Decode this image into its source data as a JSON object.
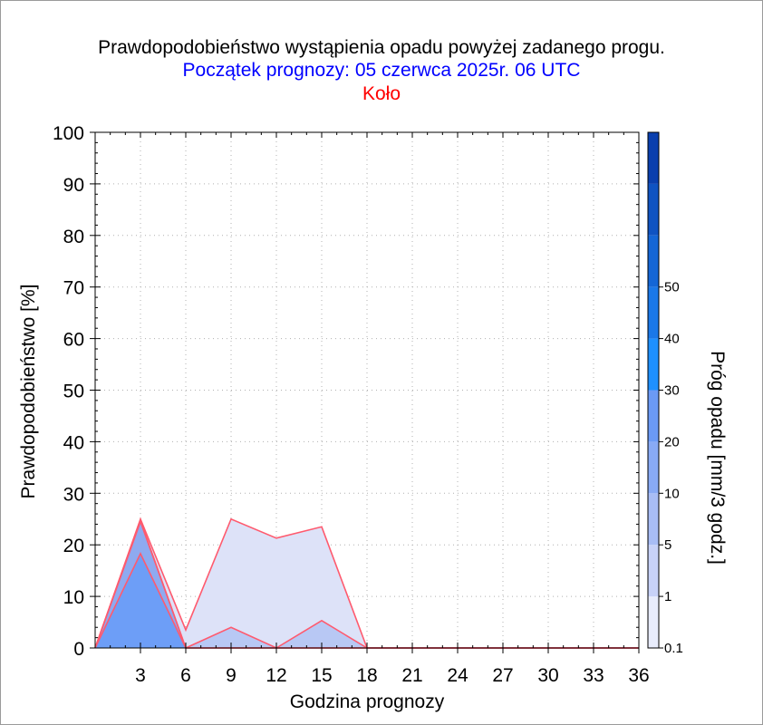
{
  "title": "Prawdopodobieństwo wystąpienia opadu powyżej zadanego progu.",
  "subtitle": "Początek prognozy: 05 czerwca 2025r. 06 UTC",
  "location": "Koło",
  "colors": {
    "title": "#000000",
    "subtitle": "#0000ff",
    "location": "#ff0000",
    "outline": "#ff5a6e",
    "grid": "#b0b0b0"
  },
  "chart_data": {
    "type": "area",
    "xlabel": "Godzina prognozy",
    "ylabel": "Prawdopodobieństwo [%]",
    "colorbar_label": "Próg opadu [mm/3 godz.]",
    "xlim": [
      0,
      36
    ],
    "ylim": [
      0,
      100
    ],
    "x_ticks": [
      "3",
      "6",
      "9",
      "12",
      "15",
      "18",
      "21",
      "24",
      "27",
      "30",
      "33",
      "36"
    ],
    "y_ticks": [
      "0",
      "10",
      "20",
      "30",
      "40",
      "50",
      "60",
      "70",
      "80",
      "90",
      "100"
    ],
    "grid": true,
    "x": [
      0,
      3,
      6,
      9,
      12,
      15,
      18,
      21,
      24,
      27,
      30,
      33,
      36
    ],
    "series": [
      {
        "threshold": "0.1",
        "color": "#dde2f8",
        "values": [
          0,
          25,
          3.5,
          25,
          21.3,
          23.5,
          0,
          0,
          0,
          0,
          0,
          0,
          0
        ]
      },
      {
        "threshold": "1",
        "color": "#b8c8f4",
        "values": [
          0,
          24.7,
          0,
          4,
          0,
          5.3,
          0,
          0,
          0,
          0,
          0,
          0,
          0
        ]
      },
      {
        "threshold": "5",
        "color": "#8eaaf0",
        "values": [
          0,
          24.5,
          0,
          0,
          0,
          0,
          0,
          0,
          0,
          0,
          0,
          0,
          0
        ]
      },
      {
        "threshold": "10",
        "color": "#6d9ef7",
        "values": [
          0,
          18.3,
          0,
          0,
          0,
          0,
          0,
          0,
          0,
          0,
          0,
          0,
          0
        ]
      }
    ],
    "colorbar": {
      "labels": [
        "0.1",
        "1",
        "5",
        "10",
        "20",
        "30",
        "40",
        "50"
      ],
      "colors": [
        "#e8ecfc",
        "#c8d2f8",
        "#a8bdf5",
        "#88aaf5",
        "#6b9af5",
        "#1e90ff",
        "#1a78e8",
        "#1466d6",
        "#0f53c2",
        "#0a3fae"
      ]
    }
  }
}
